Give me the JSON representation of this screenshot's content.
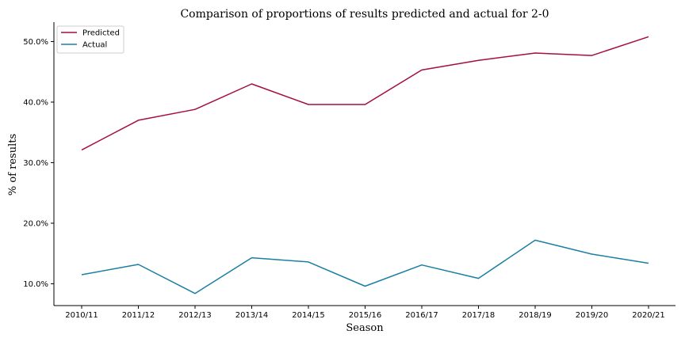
{
  "chart_data": {
    "type": "line",
    "title": "Comparison of proportions of results predicted and actual for 2-0",
    "xlabel": "Season",
    "ylabel": "% of results",
    "categories": [
      "2010/11",
      "2011/12",
      "2012/13",
      "2013/14",
      "2014/15",
      "2015/16",
      "2016/17",
      "2017/18",
      "2018/19",
      "2019/20",
      "2020/21"
    ],
    "ylim": [
      6.4,
      53.2
    ],
    "yticks": [
      10,
      20,
      30,
      40,
      50
    ],
    "ytick_labels": [
      "10.0%",
      "20.0%",
      "30.0%",
      "40.0%",
      "50.0%"
    ],
    "grid": false,
    "legend_position": "top-left",
    "series": [
      {
        "name": "Predicted",
        "color": "#a50f3c",
        "values": [
          32.1,
          37.0,
          38.8,
          43.0,
          39.6,
          39.6,
          45.3,
          46.9,
          48.1,
          47.7,
          50.8
        ]
      },
      {
        "name": "Actual",
        "color": "#1a7fa3",
        "values": [
          11.5,
          13.2,
          8.4,
          14.3,
          13.6,
          9.6,
          13.1,
          10.9,
          17.2,
          14.9,
          13.4
        ]
      }
    ]
  }
}
